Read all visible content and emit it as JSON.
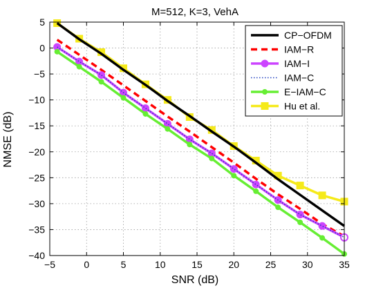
{
  "chart_data": {
    "type": "line",
    "title": "M=512, K=3, VehA",
    "xlabel": "SNR (dB)",
    "ylabel": "NMSE (dB)",
    "xlim": [
      -5,
      35
    ],
    "ylim": [
      -40,
      5
    ],
    "xticks": [
      -5,
      0,
      5,
      10,
      15,
      20,
      25,
      30,
      35
    ],
    "yticks": [
      5,
      0,
      -5,
      -10,
      -15,
      -20,
      -25,
      -30,
      -35,
      -40
    ],
    "grid": true,
    "legend_position": "top-right",
    "series": [
      {
        "name": "CP−OFDM",
        "color": "#000000",
        "line_style": "solid",
        "marker": "none",
        "x": [
          -4,
          -1,
          2,
          5,
          8,
          11,
          14,
          17,
          20,
          23,
          26,
          29,
          32,
          35
        ],
        "y": [
          4.8,
          1.7,
          -1.1,
          -4.2,
          -7.1,
          -10.2,
          -13.1,
          -16.1,
          -19.0,
          -22.1,
          -25.3,
          -28.3,
          -31.3,
          -34.3
        ]
      },
      {
        "name": "IAM−R",
        "color": "#ff0000",
        "line_style": "dashed",
        "marker": "none",
        "x": [
          -4,
          -1,
          2,
          5,
          8,
          11,
          14,
          17,
          20,
          23,
          26,
          29,
          32,
          35
        ],
        "y": [
          1.6,
          -1.3,
          -4.2,
          -7.2,
          -10.2,
          -13.2,
          -16.1,
          -19.1,
          -22.1,
          -25.2,
          -28.2,
          -31.0,
          -33.9,
          -36.3
        ]
      },
      {
        "name": "IAM−I",
        "color": "#cc44ff",
        "line_style": "solid",
        "marker": "circle",
        "x": [
          -4,
          -1,
          2,
          5,
          8,
          11,
          14,
          17,
          20,
          23,
          26,
          29,
          32,
          35
        ],
        "y": [
          0.2,
          -2.6,
          -5.2,
          -8.6,
          -11.6,
          -14.6,
          -17.6,
          -20.3,
          -23.3,
          -26.3,
          -29.3,
          -32.1,
          -34.3,
          -36.5
        ]
      },
      {
        "name": "IAM−C",
        "color": "#1f3fbf",
        "line_style": "dotted",
        "marker": "none",
        "x": [
          -4,
          -1,
          2,
          5,
          8,
          11,
          14,
          17,
          20,
          23,
          26,
          29,
          32,
          35
        ],
        "y": [
          0.2,
          -2.6,
          -5.2,
          -8.6,
          -11.6,
          -14.6,
          -17.6,
          -20.3,
          -23.3,
          -26.3,
          -29.3,
          -32.1,
          -34.3,
          -36.5
        ]
      },
      {
        "name": "E−IAM−C",
        "color": "#66ee33",
        "line_style": "solid",
        "marker": "circle-small",
        "x": [
          -4,
          -1,
          2,
          5,
          8,
          11,
          14,
          17,
          20,
          23,
          26,
          29,
          32,
          35
        ],
        "y": [
          -0.7,
          -3.6,
          -6.5,
          -9.6,
          -12.7,
          -15.6,
          -18.6,
          -21.3,
          -24.6,
          -27.6,
          -30.7,
          -33.6,
          -36.6,
          -39.7
        ]
      },
      {
        "name": "Hu et al.",
        "color": "#f5ea1a",
        "line_style": "solid",
        "marker": "square",
        "x": [
          -4,
          -1,
          2,
          5,
          8,
          11,
          14,
          17,
          20,
          23,
          26,
          29,
          32,
          35
        ],
        "y": [
          4.8,
          1.8,
          -0.8,
          -3.9,
          -7.0,
          -10.0,
          -13.3,
          -15.8,
          -18.9,
          -21.7,
          -24.6,
          -26.5,
          -28.4,
          -29.6
        ]
      }
    ]
  }
}
